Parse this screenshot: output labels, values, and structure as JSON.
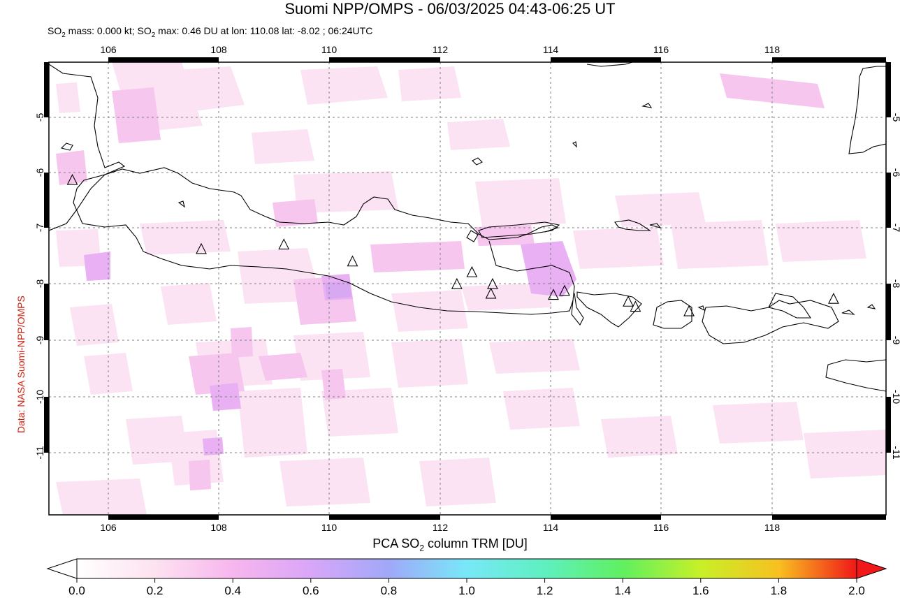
{
  "header": {
    "title": "Suomi NPP/OMPS - 06/03/2025 04:43-06:25 UT",
    "subtitle_prefix": "SO",
    "subtitle_sub": "2",
    "subtitle_mid": " mass: 0.000 kt; SO",
    "subtitle_sub2": "2",
    "subtitle_rest": " max: 0.46 DU at lon: 110.08 lat: -8.02 ; 06:24UTC"
  },
  "credit": "Data: NASA Suomi-NPP/OMPS",
  "map": {
    "lon_range": [
      105.0,
      120.0
    ],
    "lat_range": [
      -12.0,
      -4.0
    ],
    "lon_ticks": [
      "106",
      "108",
      "110",
      "112",
      "114",
      "116",
      "118"
    ],
    "lat_ticks": [
      "-5",
      "-6",
      "-7",
      "-8",
      "-9",
      "-10",
      "-11"
    ],
    "volcano_icon": "triangle-icon",
    "volcanoes": [
      {
        "lon": 105.42,
        "lat": -6.1
      },
      {
        "lon": 107.73,
        "lat": -7.32
      },
      {
        "lon": 109.21,
        "lat": -7.24
      },
      {
        "lon": 110.44,
        "lat": -7.54
      },
      {
        "lon": 112.31,
        "lat": -7.94
      },
      {
        "lon": 112.58,
        "lat": -7.73
      },
      {
        "lon": 112.95,
        "lat": -7.94
      },
      {
        "lon": 112.92,
        "lat": -8.11
      },
      {
        "lon": 114.04,
        "lat": -8.13
      },
      {
        "lon": 114.24,
        "lat": -8.06
      },
      {
        "lon": 115.38,
        "lat": -8.25
      },
      {
        "lon": 115.51,
        "lat": -8.34
      },
      {
        "lon": 116.47,
        "lat": -8.42
      },
      {
        "lon": 119.06,
        "lat": -8.2
      }
    ]
  },
  "colorbar": {
    "title_prefix": "PCA SO",
    "title_sub": "2",
    "title_rest": " column TRM [DU]",
    "ticks": [
      "0.0",
      "0.2",
      "0.4",
      "0.6",
      "0.8",
      "1.0",
      "1.2",
      "1.4",
      "1.6",
      "1.8",
      "2.0"
    ],
    "range": [
      0.0,
      2.0
    ],
    "colors": [
      "#ffffff",
      "#fde2f0",
      "#f7b6ee",
      "#d9a6f8",
      "#a0a8f8",
      "#78e8f8",
      "#5ef0c0",
      "#60f060",
      "#c8f028",
      "#f8c020",
      "#f86020",
      "#f01818"
    ]
  }
}
